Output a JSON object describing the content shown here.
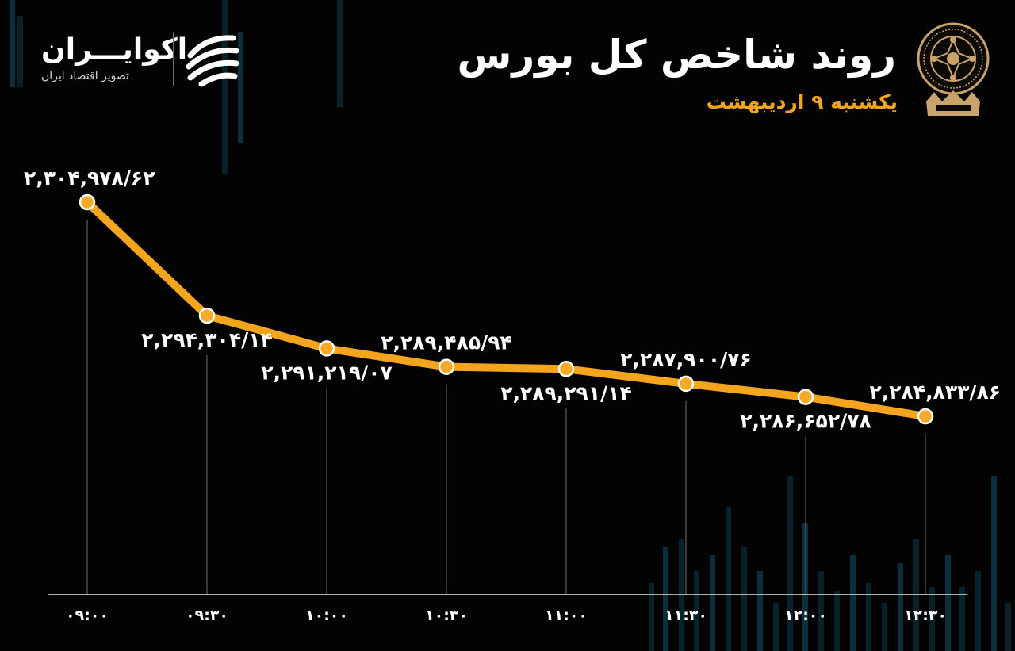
{
  "header": {
    "title": "روند شاخص کل بورس",
    "date": "یکشنبه ۹ اردیبهشت"
  },
  "brand": {
    "name": "اکوایـــران",
    "tagline": "تصویر اقتصاد ایران"
  },
  "colors": {
    "background": "#030303",
    "line": "#f4a41d",
    "marker": "#f7a928",
    "title": "#ffffff",
    "date": "#f2a51c",
    "label": "#ffffff",
    "guide": "#6f6f6f",
    "seal": "#c9a36b"
  },
  "chart_data": {
    "type": "line",
    "title": "روند شاخص کل بورس",
    "xlabel": "",
    "ylabel": "",
    "grid": false,
    "ylim": [
      2281000,
      2306500
    ],
    "categories": [
      "۰۹:۰۰",
      "۰۹:۳۰",
      "۱۰:۰۰",
      "۱۰:۳۰",
      "۱۱:۰۰",
      "۱۱:۳۰",
      "۱۲:۰۰",
      "۱۲:۳۰"
    ],
    "values": [
      2304978.62,
      2294304.14,
      2291219.07,
      2289485.94,
      2289291.14,
      2287900.76,
      2286652.78,
      2284833.86
    ],
    "data_labels": [
      "۲,۳۰۴,۹۷۸/۶۲",
      "۲,۲۹۴,۳۰۴/۱۴",
      "۲,۲۹۱,۲۱۹/۰۷",
      "۲,۲۸۹,۴۸۵/۹۴",
      "۲,۲۸۹,۲۹۱/۱۴",
      "۲,۲۸۷,۹۰۰/۷۶",
      "۲,۲۸۶,۶۵۲/۷۸",
      "۲,۲۸۴,۸۳۳/۸۶"
    ],
    "label_positions": [
      "above",
      "below",
      "below",
      "above",
      "below",
      "above",
      "below",
      "above"
    ]
  }
}
